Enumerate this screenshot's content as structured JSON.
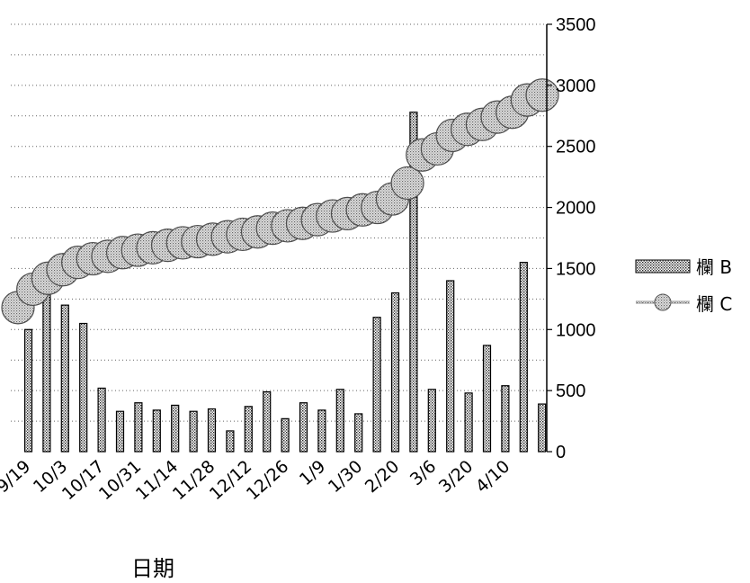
{
  "chart_data": {
    "type": "bar",
    "title": "",
    "xlabel": "日期",
    "ylabel": "",
    "ylim": [
      0,
      3500
    ],
    "y_ticks": [
      0,
      500,
      1000,
      1500,
      2000,
      2500,
      3000,
      3500
    ],
    "x_tick_labels": [
      "9/19",
      "10/3",
      "10/17",
      "10/31",
      "11/14",
      "11/28",
      "12/12",
      "12/26",
      "1/9",
      "1/30",
      "2/20",
      "3/6",
      "3/20",
      "4/10"
    ],
    "legend_position": "right",
    "grid": "dotted horizontal",
    "series": [
      {
        "name": "欄 B",
        "type": "bar",
        "values": [
          1000,
          1540,
          1200,
          1050,
          520,
          330,
          400,
          340,
          380,
          330,
          350,
          170,
          370,
          490,
          270,
          400,
          340,
          510,
          310,
          1100,
          1300,
          2780,
          510,
          1400,
          480,
          870,
          540,
          1550,
          390
        ]
      },
      {
        "name": "欄 C",
        "type": "line",
        "values": [
          1180,
          1330,
          1420,
          1490,
          1550,
          1580,
          1600,
          1630,
          1650,
          1670,
          1690,
          1710,
          1720,
          1740,
          1760,
          1780,
          1800,
          1830,
          1850,
          1870,
          1900,
          1930,
          1950,
          1980,
          2000,
          2070,
          2200,
          2430,
          2480,
          2590,
          2640,
          2680,
          2740,
          2780,
          2880,
          2920
        ]
      }
    ],
    "legend": [
      {
        "label": "欄 B",
        "marker": "hatched-bar"
      },
      {
        "label": "欄 C",
        "marker": "line-with-circle"
      }
    ]
  }
}
